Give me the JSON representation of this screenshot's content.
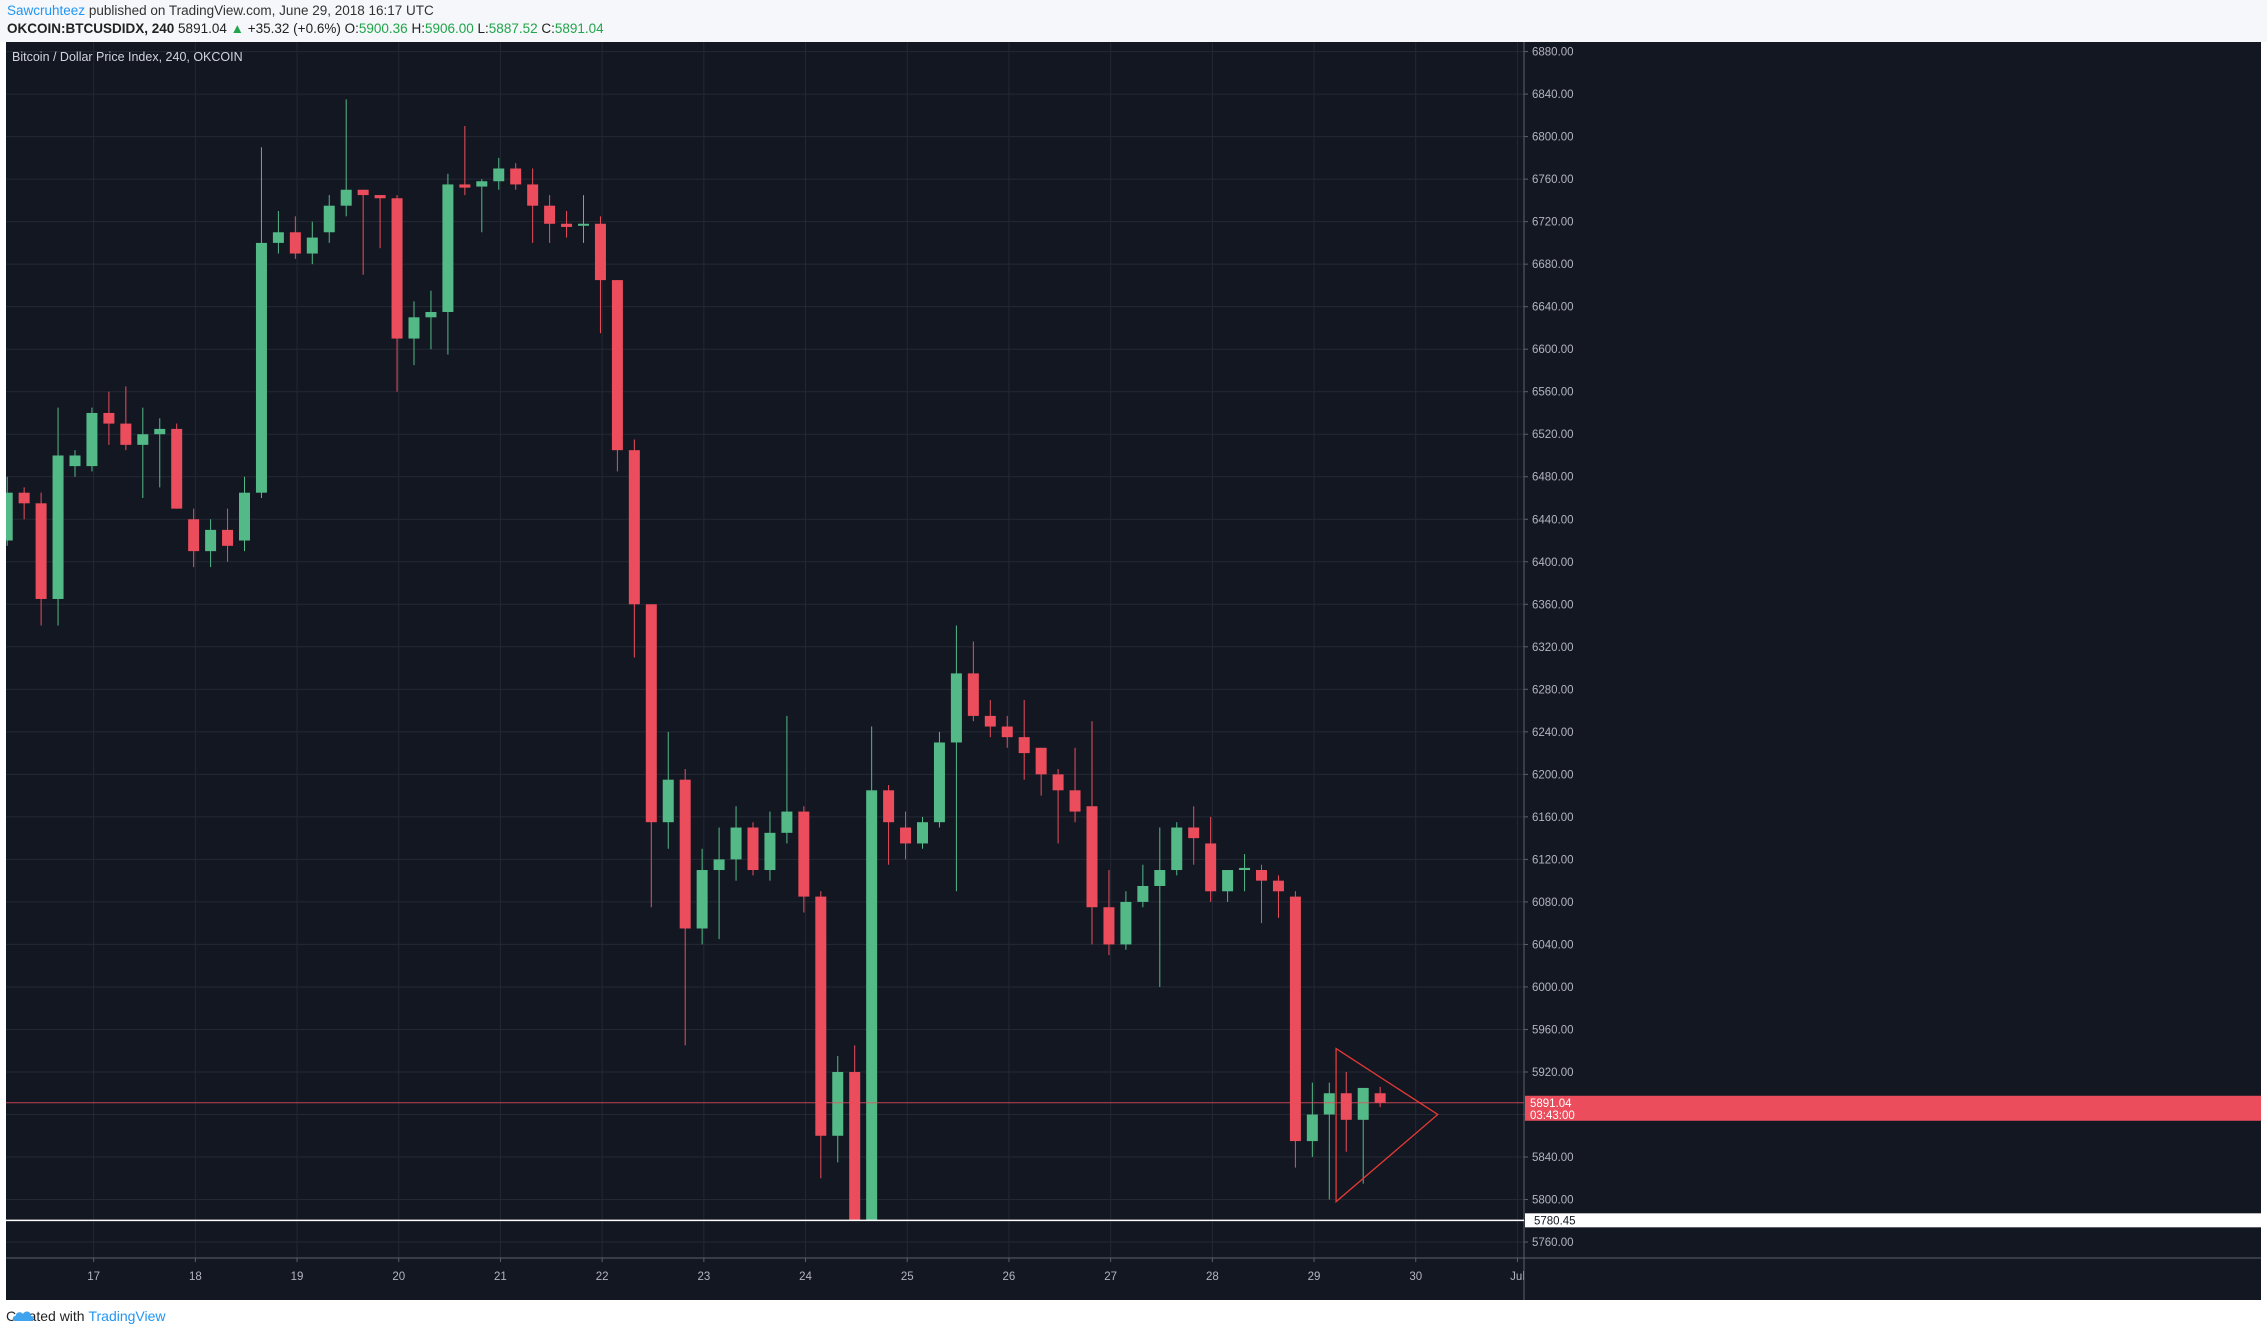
{
  "header": {
    "user": "Sawcruhteez",
    "published_text": "published on TradingView.com, June 29, 2018 16:17 UTC",
    "symbol": "OKCOIN:BTCUSDIDX, 240",
    "last": "5891.04",
    "change": "+35.32 (+0.6%)",
    "o_label": "O:",
    "o": "5900.36",
    "h_label": "H:",
    "h": "5906.00",
    "l_label": "L:",
    "l": "5887.52",
    "c_label": "C:",
    "c": "5891.04"
  },
  "footer": {
    "created_with": "Created with",
    "brand": "TradingView"
  },
  "colors": {
    "bg": "#131722",
    "up": "#53b987",
    "down": "#eb4d5c",
    "grid": "#242833",
    "text": "#b2b5be"
  },
  "chart_data": {
    "type": "candlestick",
    "title": "Bitcoin / Dollar Price Index, 240, OKCOIN",
    "ylim": [
      5745,
      6889
    ],
    "yticks": [
      5760,
      5800,
      5840,
      5880,
      5920,
      5960,
      6000,
      6040,
      6080,
      6120,
      6160,
      6200,
      6240,
      6280,
      6320,
      6360,
      6400,
      6440,
      6480,
      6520,
      6560,
      6600,
      6640,
      6680,
      6720,
      6760,
      6800,
      6840,
      6880
    ],
    "x_labels": [
      "17",
      "18",
      "19",
      "20",
      "21",
      "22",
      "23",
      "24",
      "25",
      "26",
      "27",
      "28",
      "29",
      "30",
      "Jul"
    ],
    "last_price": "5891.04",
    "countdown": "03:43:00",
    "horizontal_line": "5780.45",
    "candles": [
      {
        "o": 6420,
        "h": 6480,
        "l": 6415,
        "c": 6465
      },
      {
        "o": 6465,
        "h": 6470,
        "l": 6440,
        "c": 6455
      },
      {
        "o": 6455,
        "h": 6465,
        "l": 6340,
        "c": 6365
      },
      {
        "o": 6365,
        "h": 6545,
        "l": 6340,
        "c": 6500
      },
      {
        "o": 6490,
        "h": 6505,
        "l": 6480,
        "c": 6500
      },
      {
        "o": 6490,
        "h": 6545,
        "l": 6485,
        "c": 6540
      },
      {
        "o": 6540,
        "h": 6560,
        "l": 6510,
        "c": 6530
      },
      {
        "o": 6530,
        "h": 6565,
        "l": 6505,
        "c": 6510
      },
      {
        "o": 6510,
        "h": 6545,
        "l": 6460,
        "c": 6520
      },
      {
        "o": 6520,
        "h": 6535,
        "l": 6470,
        "c": 6525
      },
      {
        "o": 6525,
        "h": 6530,
        "l": 6450,
        "c": 6450
      },
      {
        "o": 6440,
        "h": 6450,
        "l": 6395,
        "c": 6410
      },
      {
        "o": 6410,
        "h": 6440,
        "l": 6395,
        "c": 6430
      },
      {
        "o": 6430,
        "h": 6450,
        "l": 6400,
        "c": 6415
      },
      {
        "o": 6420,
        "h": 6480,
        "l": 6410,
        "c": 6465
      },
      {
        "o": 6465,
        "h": 6790,
        "l": 6460,
        "c": 6700
      },
      {
        "o": 6700,
        "h": 6730,
        "l": 6690,
        "c": 6710
      },
      {
        "o": 6710,
        "h": 6725,
        "l": 6685,
        "c": 6690
      },
      {
        "o": 6690,
        "h": 6720,
        "l": 6680,
        "c": 6705
      },
      {
        "o": 6710,
        "h": 6745,
        "l": 6700,
        "c": 6735
      },
      {
        "o": 6735,
        "h": 6835,
        "l": 6725,
        "c": 6750
      },
      {
        "o": 6750,
        "h": 6745,
        "l": 6670,
        "c": 6745
      },
      {
        "o": 6745,
        "h": 6745,
        "l": 6695,
        "c": 6742
      },
      {
        "o": 6742,
        "h": 6745,
        "l": 6560,
        "c": 6610
      },
      {
        "o": 6610,
        "h": 6645,
        "l": 6585,
        "c": 6630
      },
      {
        "o": 6630,
        "h": 6655,
        "l": 6600,
        "c": 6635
      },
      {
        "o": 6635,
        "h": 6765,
        "l": 6595,
        "c": 6755
      },
      {
        "o": 6755,
        "h": 6810,
        "l": 6745,
        "c": 6752
      },
      {
        "o": 6753,
        "h": 6760,
        "l": 6710,
        "c": 6758
      },
      {
        "o": 6758,
        "h": 6780,
        "l": 6750,
        "c": 6770
      },
      {
        "o": 6770,
        "h": 6775,
        "l": 6750,
        "c": 6755
      },
      {
        "o": 6755,
        "h": 6770,
        "l": 6700,
        "c": 6735
      },
      {
        "o": 6735,
        "h": 6745,
        "l": 6700,
        "c": 6718
      },
      {
        "o": 6718,
        "h": 6730,
        "l": 6705,
        "c": 6715
      },
      {
        "o": 6717,
        "h": 6745,
        "l": 6700,
        "c": 6718
      },
      {
        "o": 6718,
        "h": 6725,
        "l": 6615,
        "c": 6665
      },
      {
        "o": 6665,
        "h": 6665,
        "l": 6485,
        "c": 6505
      },
      {
        "o": 6505,
        "h": 6515,
        "l": 6310,
        "c": 6360
      },
      {
        "o": 6360,
        "h": 6360,
        "l": 6075,
        "c": 6155
      },
      {
        "o": 6155,
        "h": 6240,
        "l": 6130,
        "c": 6195
      },
      {
        "o": 6195,
        "h": 6205,
        "l": 5945,
        "c": 6055
      },
      {
        "o": 6055,
        "h": 6130,
        "l": 6040,
        "c": 6110
      },
      {
        "o": 6110,
        "h": 6150,
        "l": 6045,
        "c": 6120
      },
      {
        "o": 6120,
        "h": 6170,
        "l": 6100,
        "c": 6150
      },
      {
        "o": 6150,
        "h": 6155,
        "l": 6105,
        "c": 6110
      },
      {
        "o": 6110,
        "h": 6165,
        "l": 6100,
        "c": 6145
      },
      {
        "o": 6145,
        "h": 6255,
        "l": 6135,
        "c": 6165
      },
      {
        "o": 6165,
        "h": 6170,
        "l": 6070,
        "c": 6085
      },
      {
        "o": 6085,
        "h": 6090,
        "l": 5820,
        "c": 5860
      },
      {
        "o": 5860,
        "h": 5935,
        "l": 5835,
        "c": 5920
      },
      {
        "o": 5920,
        "h": 5945,
        "l": 5780,
        "c": 5780
      },
      {
        "o": 5780,
        "h": 6245,
        "l": 5780,
        "c": 6185
      },
      {
        "o": 6185,
        "h": 6190,
        "l": 6115,
        "c": 6155
      },
      {
        "o": 6150,
        "h": 6165,
        "l": 6120,
        "c": 6135
      },
      {
        "o": 6135,
        "h": 6160,
        "l": 6130,
        "c": 6155
      },
      {
        "o": 6155,
        "h": 6240,
        "l": 6150,
        "c": 6230
      },
      {
        "o": 6230,
        "h": 6340,
        "l": 6090,
        "c": 6295
      },
      {
        "o": 6295,
        "h": 6325,
        "l": 6250,
        "c": 6255
      },
      {
        "o": 6255,
        "h": 6270,
        "l": 6235,
        "c": 6245
      },
      {
        "o": 6245,
        "h": 6255,
        "l": 6225,
        "c": 6235
      },
      {
        "o": 6235,
        "h": 6270,
        "l": 6195,
        "c": 6220
      },
      {
        "o": 6225,
        "h": 6225,
        "l": 6180,
        "c": 6200
      },
      {
        "o": 6200,
        "h": 6205,
        "l": 6135,
        "c": 6185
      },
      {
        "o": 6185,
        "h": 6225,
        "l": 6155,
        "c": 6165
      },
      {
        "o": 6170,
        "h": 6250,
        "l": 6040,
        "c": 6075
      },
      {
        "o": 6075,
        "h": 6110,
        "l": 6030,
        "c": 6040
      },
      {
        "o": 6040,
        "h": 6090,
        "l": 6035,
        "c": 6080
      },
      {
        "o": 6080,
        "h": 6115,
        "l": 6075,
        "c": 6095
      },
      {
        "o": 6095,
        "h": 6150,
        "l": 6000,
        "c": 6110
      },
      {
        "o": 6110,
        "h": 6155,
        "l": 6105,
        "c": 6150
      },
      {
        "o": 6150,
        "h": 6170,
        "l": 6115,
        "c": 6140
      },
      {
        "o": 6135,
        "h": 6160,
        "l": 6080,
        "c": 6090
      },
      {
        "o": 6090,
        "h": 6100,
        "l": 6080,
        "c": 6110
      },
      {
        "o": 6110,
        "h": 6125,
        "l": 6090,
        "c": 6112
      },
      {
        "o": 6110,
        "h": 6115,
        "l": 6060,
        "c": 6100
      },
      {
        "o": 6100,
        "h": 6105,
        "l": 6065,
        "c": 6090
      },
      {
        "o": 6085,
        "h": 6090,
        "l": 5830,
        "c": 5855
      },
      {
        "o": 5855,
        "h": 5910,
        "l": 5840,
        "c": 5880
      },
      {
        "o": 5880,
        "h": 5910,
        "l": 5800,
        "c": 5900
      },
      {
        "o": 5900,
        "h": 5920,
        "l": 5845,
        "c": 5875
      },
      {
        "o": 5875,
        "h": 5905,
        "l": 5815,
        "c": 5905
      },
      {
        "o": 5900,
        "h": 5906,
        "l": 5887,
        "c": 5891
      }
    ],
    "triangle": [
      {
        "i": 78.4,
        "p": 5942
      },
      {
        "i": 84.4,
        "p": 5880
      },
      {
        "i": 78.4,
        "p": 5798
      }
    ]
  }
}
